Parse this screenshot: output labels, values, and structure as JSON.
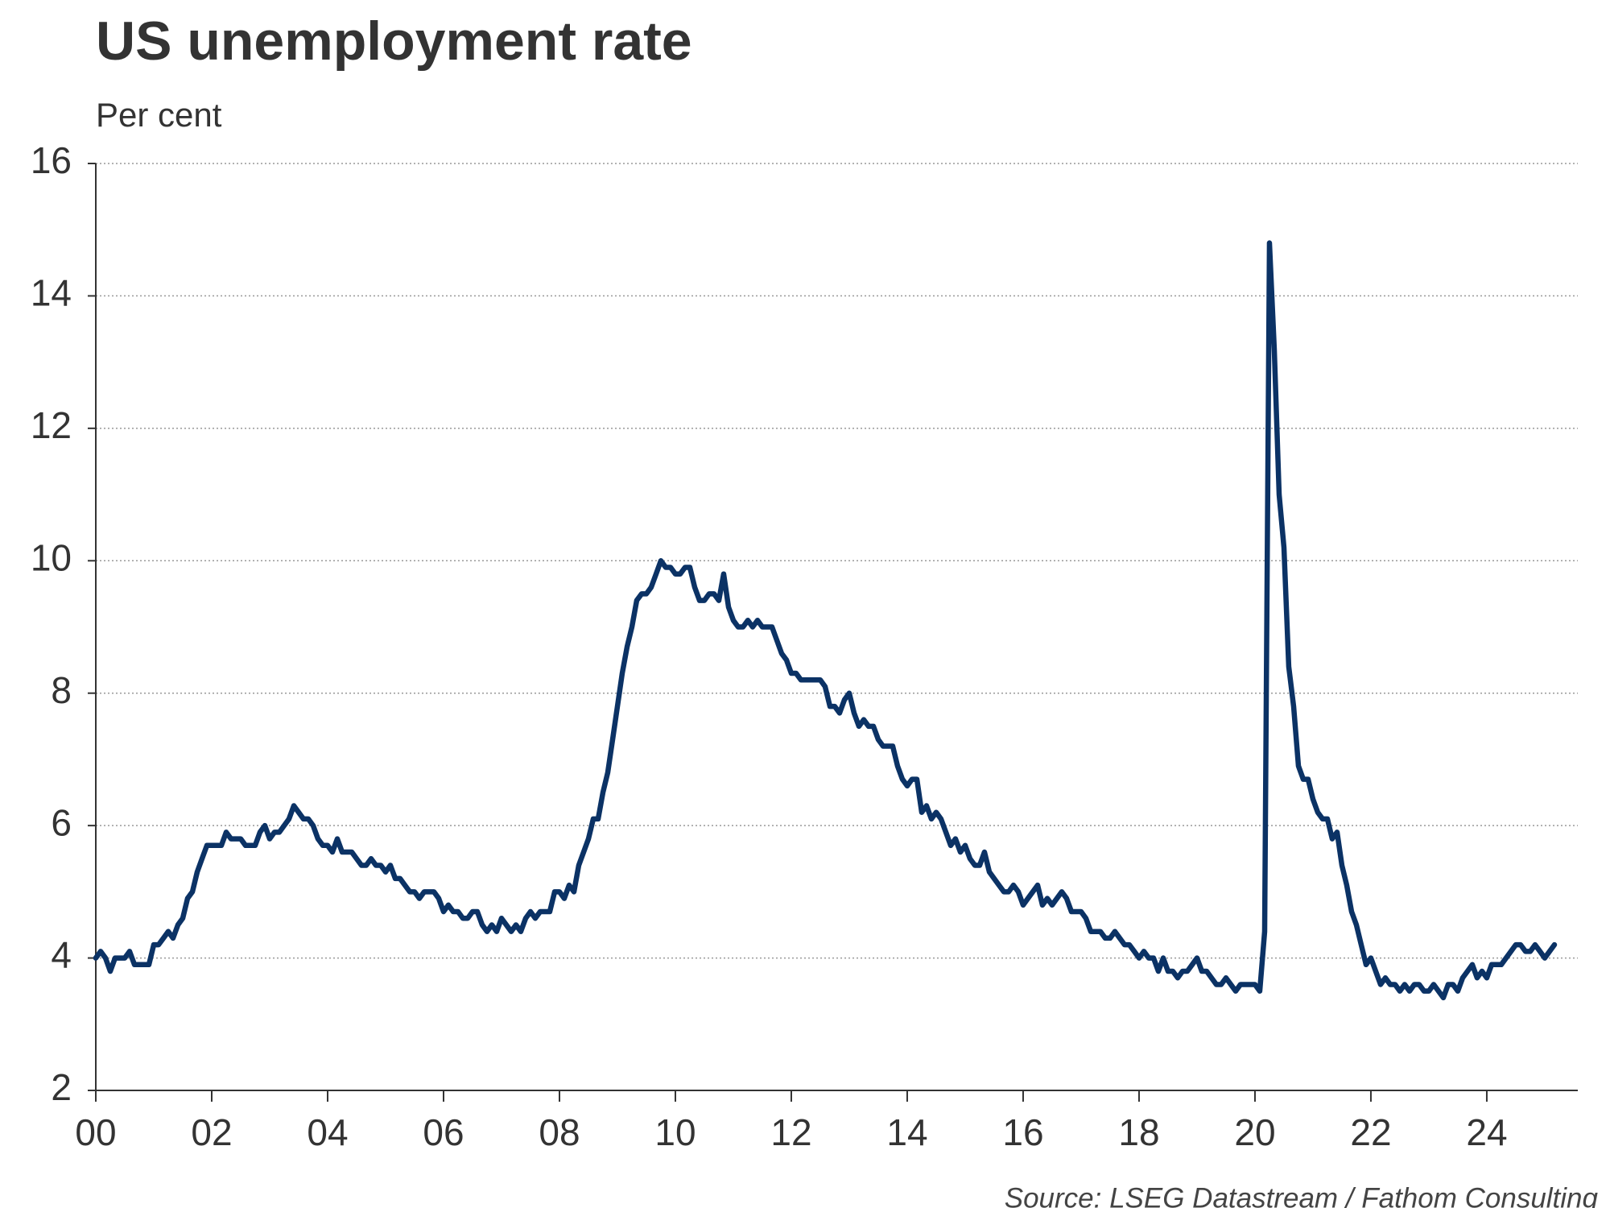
{
  "chart_data": {
    "type": "line",
    "title": "US unemployment rate",
    "subtitle": "Per cent",
    "source": "Source: LSEG Datastream / Fathom Consulting",
    "color": "#0b3265",
    "grid": true,
    "xlim": [
      2000,
      2025.57
    ],
    "ylim": [
      2,
      16
    ],
    "yticks": [
      2,
      4,
      6,
      8,
      10,
      12,
      14,
      16
    ],
    "xticks": [
      {
        "value": 2000,
        "label": "00"
      },
      {
        "value": 2002,
        "label": "02"
      },
      {
        "value": 2004,
        "label": "04"
      },
      {
        "value": 2006,
        "label": "06"
      },
      {
        "value": 2008,
        "label": "08"
      },
      {
        "value": 2010,
        "label": "10"
      },
      {
        "value": 2012,
        "label": "12"
      },
      {
        "value": 2014,
        "label": "14"
      },
      {
        "value": 2016,
        "label": "16"
      },
      {
        "value": 2018,
        "label": "18"
      },
      {
        "value": 2020,
        "label": "20"
      },
      {
        "value": 2022,
        "label": "22"
      },
      {
        "value": 2024,
        "label": "24"
      }
    ],
    "x": [
      2000,
      2000.083,
      2000.167,
      2000.25,
      2000.333,
      2000.417,
      2000.5,
      2000.583,
      2000.667,
      2000.75,
      2000.833,
      2000.917,
      2001,
      2001.083,
      2001.167,
      2001.25,
      2001.333,
      2001.417,
      2001.5,
      2001.583,
      2001.667,
      2001.75,
      2001.833,
      2001.917,
      2002,
      2002.083,
      2002.167,
      2002.25,
      2002.333,
      2002.417,
      2002.5,
      2002.583,
      2002.667,
      2002.75,
      2002.833,
      2002.917,
      2003,
      2003.083,
      2003.167,
      2003.25,
      2003.333,
      2003.417,
      2003.5,
      2003.583,
      2003.667,
      2003.75,
      2003.833,
      2003.917,
      2004,
      2004.083,
      2004.167,
      2004.25,
      2004.333,
      2004.417,
      2004.5,
      2004.583,
      2004.667,
      2004.75,
      2004.833,
      2004.917,
      2005,
      2005.083,
      2005.167,
      2005.25,
      2005.333,
      2005.417,
      2005.5,
      2005.583,
      2005.667,
      2005.75,
      2005.833,
      2005.917,
      2006,
      2006.083,
      2006.167,
      2006.25,
      2006.333,
      2006.417,
      2006.5,
      2006.583,
      2006.667,
      2006.75,
      2006.833,
      2006.917,
      2007,
      2007.083,
      2007.167,
      2007.25,
      2007.333,
      2007.417,
      2007.5,
      2007.583,
      2007.667,
      2007.75,
      2007.833,
      2007.917,
      2008,
      2008.083,
      2008.167,
      2008.25,
      2008.333,
      2008.417,
      2008.5,
      2008.583,
      2008.667,
      2008.75,
      2008.833,
      2008.917,
      2009,
      2009.083,
      2009.167,
      2009.25,
      2009.333,
      2009.417,
      2009.5,
      2009.583,
      2009.667,
      2009.75,
      2009.833,
      2009.917,
      2010,
      2010.083,
      2010.167,
      2010.25,
      2010.333,
      2010.417,
      2010.5,
      2010.583,
      2010.667,
      2010.75,
      2010.833,
      2010.917,
      2011,
      2011.083,
      2011.167,
      2011.25,
      2011.333,
      2011.417,
      2011.5,
      2011.583,
      2011.667,
      2011.75,
      2011.833,
      2011.917,
      2012,
      2012.083,
      2012.167,
      2012.25,
      2012.333,
      2012.417,
      2012.5,
      2012.583,
      2012.667,
      2012.75,
      2012.833,
      2012.917,
      2013,
      2013.083,
      2013.167,
      2013.25,
      2013.333,
      2013.417,
      2013.5,
      2013.583,
      2013.667,
      2013.75,
      2013.833,
      2013.917,
      2014,
      2014.083,
      2014.167,
      2014.25,
      2014.333,
      2014.417,
      2014.5,
      2014.583,
      2014.667,
      2014.75,
      2014.833,
      2014.917,
      2015,
      2015.083,
      2015.167,
      2015.25,
      2015.333,
      2015.417,
      2015.5,
      2015.583,
      2015.667,
      2015.75,
      2015.833,
      2015.917,
      2016,
      2016.083,
      2016.167,
      2016.25,
      2016.333,
      2016.417,
      2016.5,
      2016.583,
      2016.667,
      2016.75,
      2016.833,
      2016.917,
      2017,
      2017.083,
      2017.167,
      2017.25,
      2017.333,
      2017.417,
      2017.5,
      2017.583,
      2017.667,
      2017.75,
      2017.833,
      2017.917,
      2018,
      2018.083,
      2018.167,
      2018.25,
      2018.333,
      2018.417,
      2018.5,
      2018.583,
      2018.667,
      2018.75,
      2018.833,
      2018.917,
      2019,
      2019.083,
      2019.167,
      2019.25,
      2019.333,
      2019.417,
      2019.5,
      2019.583,
      2019.667,
      2019.75,
      2019.833,
      2019.917,
      2020,
      2020.083,
      2020.167,
      2020.25,
      2020.333,
      2020.417,
      2020.5,
      2020.583,
      2020.667,
      2020.75,
      2020.833,
      2020.917,
      2021,
      2021.083,
      2021.167,
      2021.25,
      2021.333,
      2021.417,
      2021.5,
      2021.583,
      2021.667,
      2021.75,
      2021.833,
      2021.917,
      2022,
      2022.083,
      2022.167,
      2022.25,
      2022.333,
      2022.417,
      2022.5,
      2022.583,
      2022.667,
      2022.75,
      2022.833,
      2022.917,
      2023,
      2023.083,
      2023.167,
      2023.25,
      2023.333,
      2023.417,
      2023.5,
      2023.583,
      2023.667,
      2023.75,
      2023.833,
      2023.917,
      2024,
      2024.083,
      2024.167,
      2024.25,
      2024.333,
      2024.417,
      2024.5,
      2024.583,
      2024.667,
      2024.75,
      2024.833,
      2024.917,
      2025,
      2025.083,
      2025.167
    ],
    "values": [
      4.0,
      4.1,
      4.0,
      3.8,
      4.0,
      4.0,
      4.0,
      4.1,
      3.9,
      3.9,
      3.9,
      3.9,
      4.2,
      4.2,
      4.3,
      4.4,
      4.3,
      4.5,
      4.6,
      4.9,
      5.0,
      5.3,
      5.5,
      5.7,
      5.7,
      5.7,
      5.7,
      5.9,
      5.8,
      5.8,
      5.8,
      5.7,
      5.7,
      5.7,
      5.9,
      6.0,
      5.8,
      5.9,
      5.9,
      6.0,
      6.1,
      6.3,
      6.2,
      6.1,
      6.1,
      6.0,
      5.8,
      5.7,
      5.7,
      5.6,
      5.8,
      5.6,
      5.6,
      5.6,
      5.5,
      5.4,
      5.4,
      5.5,
      5.4,
      5.4,
      5.3,
      5.4,
      5.2,
      5.2,
      5.1,
      5.0,
      5.0,
      4.9,
      5.0,
      5.0,
      5.0,
      4.9,
      4.7,
      4.8,
      4.7,
      4.7,
      4.6,
      4.6,
      4.7,
      4.7,
      4.5,
      4.4,
      4.5,
      4.4,
      4.6,
      4.5,
      4.4,
      4.5,
      4.4,
      4.6,
      4.7,
      4.6,
      4.7,
      4.7,
      4.7,
      5.0,
      5.0,
      4.9,
      5.1,
      5.0,
      5.4,
      5.6,
      5.8,
      6.1,
      6.1,
      6.5,
      6.8,
      7.3,
      7.8,
      8.3,
      8.7,
      9.0,
      9.4,
      9.5,
      9.5,
      9.6,
      9.8,
      10.0,
      9.9,
      9.9,
      9.8,
      9.8,
      9.9,
      9.9,
      9.6,
      9.4,
      9.4,
      9.5,
      9.5,
      9.4,
      9.8,
      9.3,
      9.1,
      9.0,
      9.0,
      9.1,
      9.0,
      9.1,
      9.0,
      9.0,
      9.0,
      8.8,
      8.6,
      8.5,
      8.3,
      8.3,
      8.2,
      8.2,
      8.2,
      8.2,
      8.2,
      8.1,
      7.8,
      7.8,
      7.7,
      7.9,
      8.0,
      7.7,
      7.5,
      7.6,
      7.5,
      7.5,
      7.3,
      7.2,
      7.2,
      7.2,
      6.9,
      6.7,
      6.6,
      6.7,
      6.7,
      6.2,
      6.3,
      6.1,
      6.2,
      6.1,
      5.9,
      5.7,
      5.8,
      5.6,
      5.7,
      5.5,
      5.4,
      5.4,
      5.6,
      5.3,
      5.2,
      5.1,
      5.0,
      5.0,
      5.1,
      5.0,
      4.8,
      4.9,
      5.0,
      5.1,
      4.8,
      4.9,
      4.8,
      4.9,
      5.0,
      4.9,
      4.7,
      4.7,
      4.7,
      4.6,
      4.4,
      4.4,
      4.4,
      4.3,
      4.3,
      4.4,
      4.3,
      4.2,
      4.2,
      4.1,
      4.0,
      4.1,
      4.0,
      4.0,
      3.8,
      4.0,
      3.8,
      3.8,
      3.7,
      3.8,
      3.8,
      3.9,
      4.0,
      3.8,
      3.8,
      3.7,
      3.6,
      3.6,
      3.7,
      3.6,
      3.5,
      3.6,
      3.6,
      3.6,
      3.6,
      3.5,
      4.4,
      14.8,
      13.2,
      11.0,
      10.2,
      8.4,
      7.8,
      6.9,
      6.7,
      6.7,
      6.4,
      6.2,
      6.1,
      6.1,
      5.8,
      5.9,
      5.4,
      5.1,
      4.7,
      4.5,
      4.2,
      3.9,
      4.0,
      3.8,
      3.6,
      3.7,
      3.6,
      3.6,
      3.5,
      3.6,
      3.5,
      3.6,
      3.6,
      3.5,
      3.5,
      3.6,
      3.5,
      3.4,
      3.6,
      3.6,
      3.5,
      3.7,
      3.8,
      3.9,
      3.7,
      3.8,
      3.7,
      3.9,
      3.9,
      3.9,
      4.0,
      4.1,
      4.2,
      4.2,
      4.1,
      4.1,
      4.2,
      4.1,
      4.0,
      4.1,
      4.2
    ]
  }
}
